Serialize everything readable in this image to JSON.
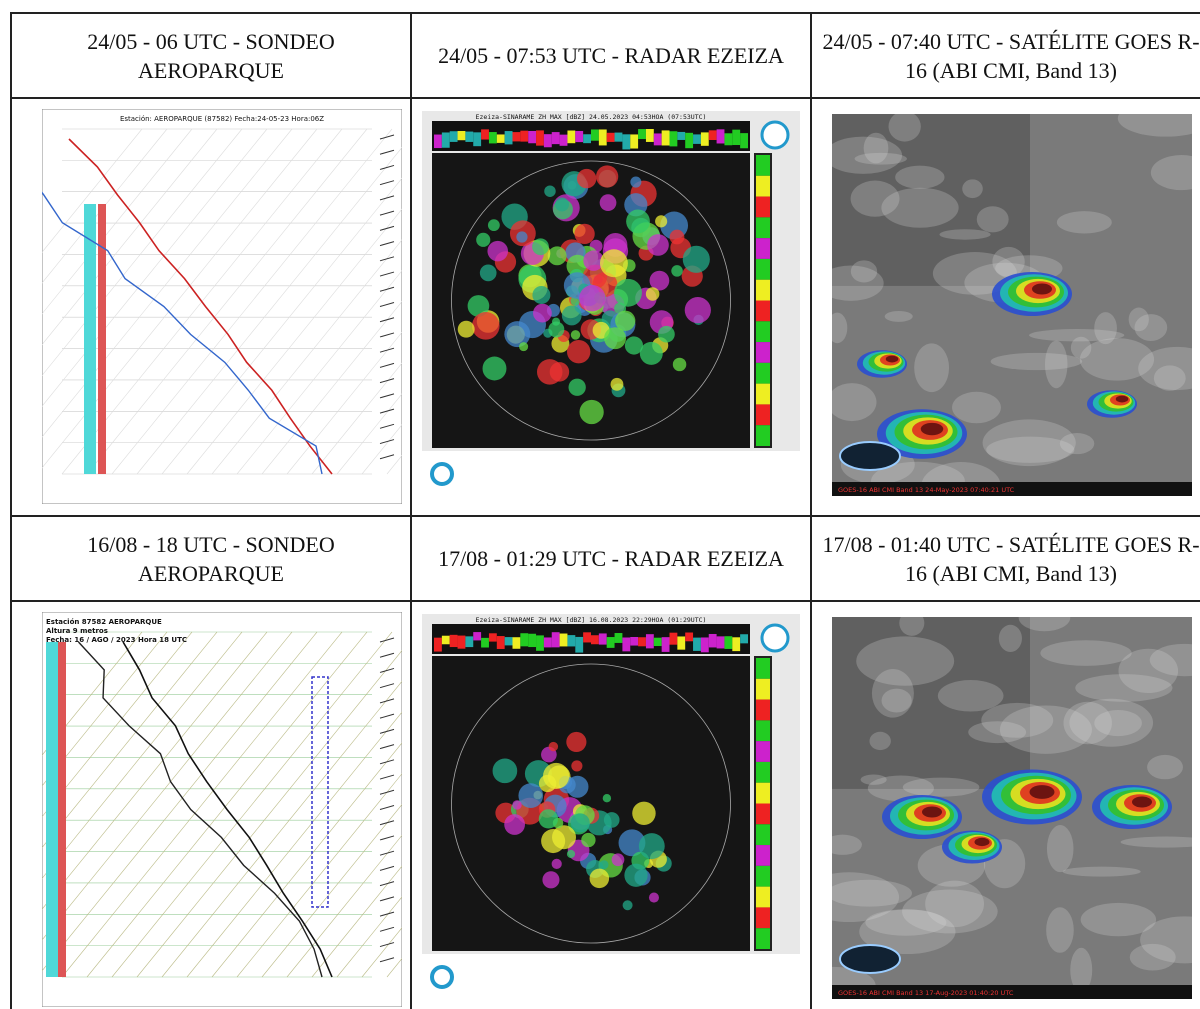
{
  "sections": [
    {
      "headers": [
        "24/05 - 06 UTC - SONDEO AEROPARQUE",
        "24/05 - 07:53 UTC - RADAR EZEIZA",
        "24/05 - 07:40 UTC - SATÉLITE GOES R-16 (ABI CMI, Band 13)"
      ],
      "panels": [
        {
          "texts": [
            "Estación: AEROPARQUE (87582) Fecha:24-05-23 Hora:06Z"
          ]
        },
        {
          "texts": [
            "Ezeiza-SINARAME ZH MAX [dBZ] 24.05.2023 04:53HOA (07:53UTC)"
          ]
        },
        {
          "texts": [
            "GOES-16 ABI CMI Band 13 24-May-2023 07:40:21 UTC"
          ]
        }
      ]
    },
    {
      "headers": [
        "16/08 - 18 UTC - SONDEO AEROPARQUE",
        "17/08 - 01:29 UTC - RADAR EZEIZA",
        "17/08 - 01:40 UTC - SATÉLITE GOES R-16 (ABI CMI, Band 13)"
      ],
      "panels": [
        {
          "texts": [
            "Estación 87582 AEROPARQUE",
            "Altura 9 metros",
            "Fecha: 16 / AGO / 2023 Hora 18 UTC"
          ]
        },
        {
          "texts": [
            "Ezeiza-SINARAME ZH MAX [dBZ] 16.08.2023 22:29HOA (01:29UTC)"
          ]
        },
        {
          "texts": [
            "GOES-16 ABI CMI Band 13 17-Aug-2023 01:40:20 UTC"
          ]
        }
      ]
    }
  ]
}
